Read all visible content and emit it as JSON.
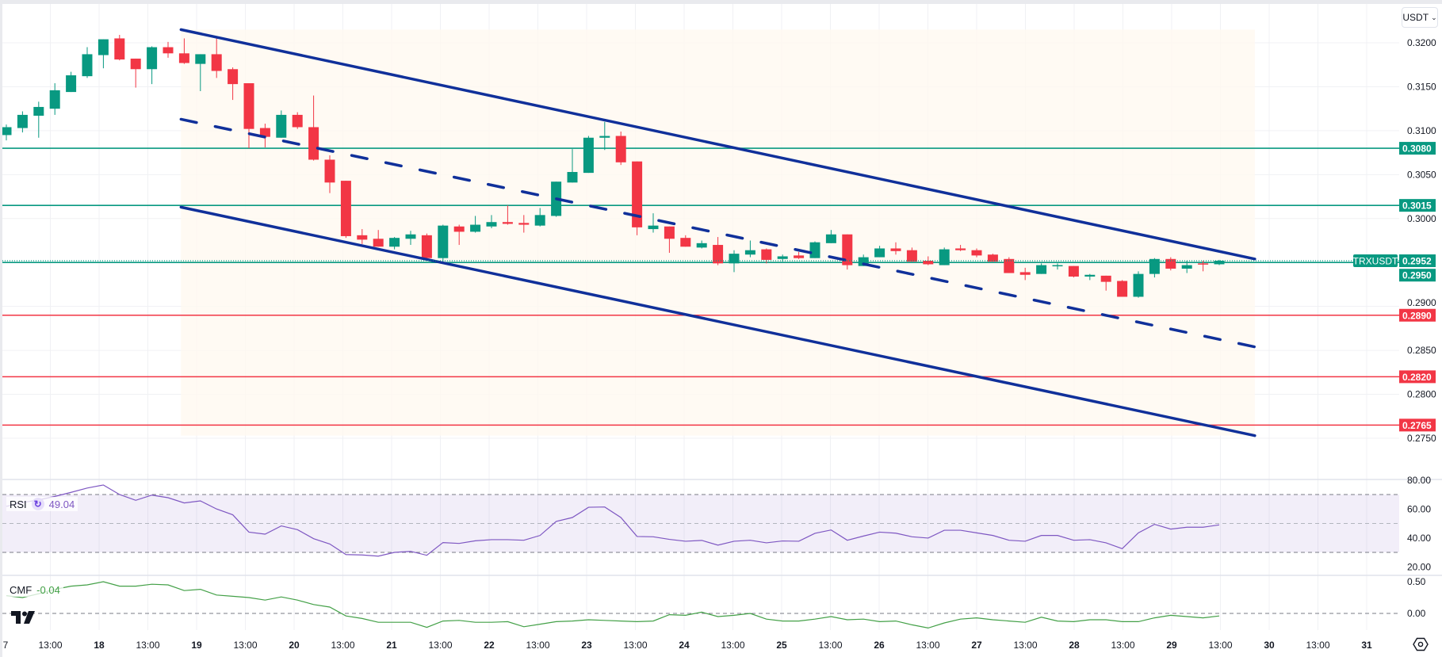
{
  "header": {
    "currency": "USDT"
  },
  "colors": {
    "up": "#089981",
    "down": "#f23645",
    "channel": "#10309a",
    "support": "#089981",
    "resistance": "#f23645",
    "rsi": "#7e57c2",
    "cmf": "#43a047"
  },
  "indicators": {
    "rsi": {
      "label": "RSI",
      "value": "49.04"
    },
    "cmf": {
      "label": "CMF",
      "value": "-0.04"
    }
  },
  "chart_data": {
    "type": "candlestick",
    "symbol": "TRXUSDT",
    "last_price": "0.2952",
    "price_ticks": [
      "0.3200",
      "0.3150",
      "0.3100",
      "0.3050",
      "0.3000",
      "0.2900",
      "0.2850",
      "0.2800",
      "0.2750"
    ],
    "ylim": [
      0.2738,
      0.3222
    ],
    "levels": [
      {
        "price": "0.3080",
        "type": "support"
      },
      {
        "price": "0.3015",
        "type": "support"
      },
      {
        "price": "0.2950",
        "type": "support"
      },
      {
        "price": "0.2890",
        "type": "resistance"
      },
      {
        "price": "0.2820",
        "type": "resistance"
      },
      {
        "price": "0.2765",
        "type": "resistance"
      }
    ],
    "channel": {
      "upper": [
        [
          10.8,
          0.3215
        ],
        [
          77.2,
          0.2954
        ]
      ],
      "middle": [
        [
          10.8,
          0.3113
        ],
        [
          77.2,
          0.2854
        ]
      ],
      "lower": [
        [
          10.8,
          0.3013
        ],
        [
          77.2,
          0.2753
        ]
      ]
    },
    "time_labels": [
      "7",
      "13:00",
      "18",
      "13:00",
      "19",
      "13:00",
      "20",
      "13:00",
      "21",
      "13:00",
      "22",
      "13:00",
      "23",
      "13:00",
      "24",
      "13:00",
      "25",
      "13:00",
      "26",
      "13:00",
      "27",
      "13:00",
      "28",
      "13:00",
      "29",
      "13:00",
      "30",
      "13:00",
      "31"
    ],
    "candles_ohlc": [
      [
        0.3095,
        0.3107,
        0.3089,
        0.3104
      ],
      [
        0.3103,
        0.3122,
        0.3098,
        0.3118
      ],
      [
        0.3117,
        0.3133,
        0.3092,
        0.3127
      ],
      [
        0.3125,
        0.3154,
        0.3118,
        0.3146
      ],
      [
        0.3144,
        0.3167,
        0.3144,
        0.3163
      ],
      [
        0.3162,
        0.3195,
        0.316,
        0.3187
      ],
      [
        0.3186,
        0.3204,
        0.3171,
        0.3204
      ],
      [
        0.3205,
        0.3209,
        0.318,
        0.3181
      ],
      [
        0.3182,
        0.3182,
        0.3149,
        0.317
      ],
      [
        0.317,
        0.3196,
        0.3153,
        0.3195
      ],
      [
        0.3195,
        0.3201,
        0.3183,
        0.3188
      ],
      [
        0.3188,
        0.3205,
        0.3176,
        0.3177
      ],
      [
        0.3176,
        0.3187,
        0.3145,
        0.3187
      ],
      [
        0.3187,
        0.3206,
        0.316,
        0.3168
      ],
      [
        0.317,
        0.3172,
        0.3135,
        0.3153
      ],
      [
        0.3154,
        0.3154,
        0.308,
        0.3102
      ],
      [
        0.3103,
        0.3108,
        0.3081,
        0.3093
      ],
      [
        0.3092,
        0.3123,
        0.3092,
        0.3118
      ],
      [
        0.3118,
        0.3121,
        0.3102,
        0.3104
      ],
      [
        0.3104,
        0.314,
        0.3066,
        0.3067
      ],
      [
        0.3067,
        0.3072,
        0.3029,
        0.3041
      ],
      [
        0.3043,
        0.3043,
        0.2978,
        0.298
      ],
      [
        0.2981,
        0.2988,
        0.2971,
        0.2976
      ],
      [
        0.2977,
        0.2987,
        0.2968,
        0.2968
      ],
      [
        0.2968,
        0.2979,
        0.2965,
        0.2978
      ],
      [
        0.2977,
        0.2986,
        0.297,
        0.2982
      ],
      [
        0.2981,
        0.2983,
        0.2952,
        0.2955
      ],
      [
        0.2955,
        0.2993,
        0.2949,
        0.2992
      ],
      [
        0.2991,
        0.2993,
        0.297,
        0.2985
      ],
      [
        0.2985,
        0.3003,
        0.2984,
        0.2993
      ],
      [
        0.2991,
        0.3004,
        0.2989,
        0.2996
      ],
      [
        0.2996,
        0.3015,
        0.2993,
        0.2994
      ],
      [
        0.2995,
        0.3004,
        0.2984,
        0.2993
      ],
      [
        0.2992,
        0.3012,
        0.2991,
        0.3004
      ],
      [
        0.3003,
        0.3042,
        0.3002,
        0.3042
      ],
      [
        0.3041,
        0.3079,
        0.3041,
        0.3053
      ],
      [
        0.3052,
        0.3094,
        0.3052,
        0.3092
      ],
      [
        0.3092,
        0.311,
        0.3078,
        0.3094
      ],
      [
        0.3094,
        0.3099,
        0.3061,
        0.3064
      ],
      [
        0.3065,
        0.3065,
        0.2981,
        0.299
      ],
      [
        0.2988,
        0.3006,
        0.2984,
        0.2992
      ],
      [
        0.2991,
        0.2991,
        0.2961,
        0.2977
      ],
      [
        0.2978,
        0.2981,
        0.2968,
        0.2968
      ],
      [
        0.2967,
        0.2975,
        0.2966,
        0.2972
      ],
      [
        0.297,
        0.2979,
        0.2947,
        0.2949
      ],
      [
        0.2949,
        0.2964,
        0.2939,
        0.296
      ],
      [
        0.2959,
        0.2975,
        0.2956,
        0.2964
      ],
      [
        0.2965,
        0.2966,
        0.2949,
        0.2953
      ],
      [
        0.2954,
        0.2959,
        0.2951,
        0.2957
      ],
      [
        0.2958,
        0.2962,
        0.2954,
        0.2955
      ],
      [
        0.2955,
        0.2974,
        0.2955,
        0.2973
      ],
      [
        0.2972,
        0.2987,
        0.2972,
        0.2982
      ],
      [
        0.2982,
        0.2982,
        0.2942,
        0.2947
      ],
      [
        0.2946,
        0.2959,
        0.2946,
        0.2956
      ],
      [
        0.2956,
        0.2969,
        0.2956,
        0.2966
      ],
      [
        0.2966,
        0.2973,
        0.2959,
        0.2963
      ],
      [
        0.2964,
        0.2967,
        0.2951,
        0.2951
      ],
      [
        0.2952,
        0.2957,
        0.2947,
        0.2948
      ],
      [
        0.2947,
        0.2967,
        0.2947,
        0.2965
      ],
      [
        0.2966,
        0.297,
        0.2963,
        0.2964
      ],
      [
        0.2964,
        0.2966,
        0.2956,
        0.2958
      ],
      [
        0.2959,
        0.296,
        0.2951,
        0.2951
      ],
      [
        0.2954,
        0.2956,
        0.2938,
        0.2938
      ],
      [
        0.2939,
        0.2944,
        0.293,
        0.2936
      ],
      [
        0.2937,
        0.2949,
        0.2937,
        0.2947
      ],
      [
        0.2946,
        0.2949,
        0.2942,
        0.2947
      ],
      [
        0.2946,
        0.2946,
        0.2933,
        0.2934
      ],
      [
        0.2934,
        0.2937,
        0.293,
        0.2936
      ],
      [
        0.2935,
        0.2935,
        0.2918,
        0.2928
      ],
      [
        0.2929,
        0.293,
        0.2911,
        0.2911
      ],
      [
        0.2911,
        0.294,
        0.291,
        0.2937
      ],
      [
        0.2937,
        0.2955,
        0.2933,
        0.2954
      ],
      [
        0.2954,
        0.2956,
        0.2941,
        0.2943
      ],
      [
        0.2943,
        0.2952,
        0.2938,
        0.2947
      ],
      [
        0.2949,
        0.2952,
        0.294,
        0.2948
      ],
      [
        0.2948,
        0.2953,
        0.2947,
        0.2952
      ]
    ],
    "rsi": {
      "ticks": [
        "80.00",
        "60.00",
        "40.00",
        "20.00"
      ],
      "bands": [
        70,
        50,
        30
      ],
      "values": [
        61.8,
        64.5,
        66.3,
        68.7,
        71.5,
        74.5,
        76.6,
        70,
        66,
        69.6,
        67.8,
        64.2,
        65.6,
        60,
        56,
        44,
        42.6,
        48.3,
        45.7,
        39.5,
        35.8,
        28.5,
        28.2,
        27.4,
        30,
        30.7,
        28,
        36.8,
        36.2,
        38,
        38.8,
        38.8,
        38.4,
        41.7,
        51.4,
        54.1,
        61.2,
        61.4,
        54.1,
        41,
        40.8,
        39,
        37.7,
        38.3,
        35,
        37.7,
        38.4,
        36.6,
        37.9,
        37.7,
        43.2,
        45.5,
        38.4,
        41.3,
        44,
        43.3,
        40.8,
        39.9,
        45.3,
        45.3,
        43.5,
        41.7,
        38.4,
        37.7,
        41.7,
        41.7,
        38.4,
        38.8,
        36.6,
        32.6,
        43.5,
        49.4,
        46.1,
        47.4,
        47.4,
        49.0
      ]
    },
    "cmf": {
      "ticks": [
        "0.50",
        "0.00"
      ],
      "values": [
        0.28,
        0.25,
        0.31,
        0.38,
        0.43,
        0.45,
        0.5,
        0.43,
        0.43,
        0.46,
        0.45,
        0.36,
        0.38,
        0.29,
        0.27,
        0.25,
        0.21,
        0.26,
        0.21,
        0.14,
        0.1,
        -0.04,
        -0.08,
        -0.14,
        -0.14,
        -0.14,
        -0.22,
        -0.12,
        -0.11,
        -0.14,
        -0.14,
        -0.13,
        -0.21,
        -0.17,
        -0.13,
        -0.12,
        -0.1,
        -0.11,
        -0.12,
        -0.13,
        -0.12,
        -0.02,
        -0.03,
        0.02,
        -0.05,
        -0.03,
        0.0,
        -0.09,
        -0.12,
        -0.12,
        -0.09,
        -0.05,
        -0.1,
        -0.09,
        -0.13,
        -0.12,
        -0.18,
        -0.23,
        -0.15,
        -0.09,
        -0.07,
        -0.1,
        -0.12,
        -0.14,
        -0.06,
        -0.12,
        -0.13,
        -0.1,
        -0.1,
        -0.13,
        -0.13,
        -0.07,
        -0.03,
        -0.05,
        -0.07,
        -0.04
      ]
    }
  }
}
